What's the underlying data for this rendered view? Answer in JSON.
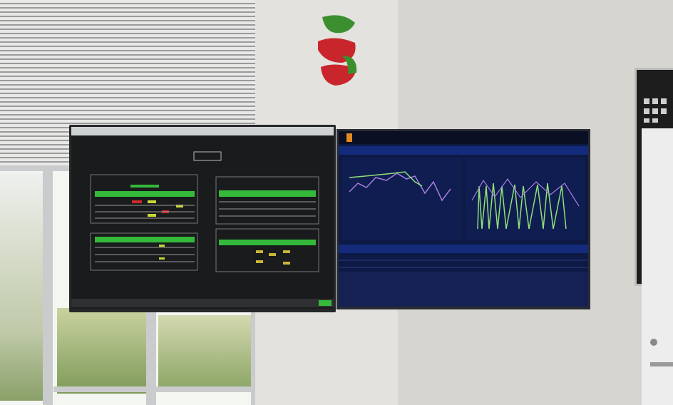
{
  "colors": {
    "dashboard_green": "#35b93a",
    "dashboard_bg": "#1a1b1c",
    "chart_bg": "#0d1a45",
    "chart_header": "#142a7a",
    "series_green": "#8fe07a",
    "series_purple": "#a47ee0",
    "logo_red": "#c8262c",
    "logo_green": "#3b8f2e"
  }
}
